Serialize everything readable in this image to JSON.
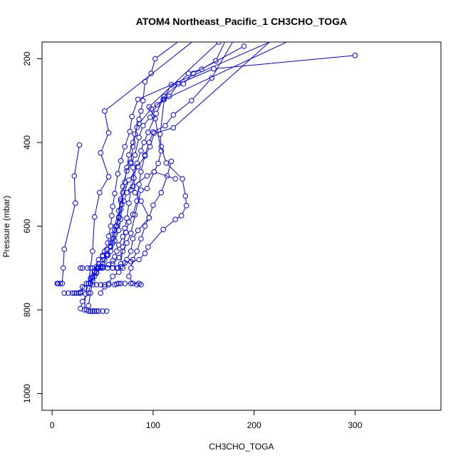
{
  "chart_data": {
    "type": "line",
    "title": "ATOM4 Northeast_Pacific_1 CH3CHO_TOGA",
    "xlabel": "CH3CHO_TOGA",
    "ylabel": "Pressure (mbar)",
    "xlim": [
      -10,
      385
    ],
    "ylim": [
      1040,
      160
    ],
    "y_reversed": true,
    "x_ticks": [
      0,
      100,
      200,
      300
    ],
    "y_ticks": [
      200,
      400,
      600,
      800,
      1000
    ],
    "grid": false,
    "legend": "none",
    "marker": "open-circle",
    "series": [
      {
        "points": [
          [
            27,
            406
          ],
          [
            22,
            480
          ],
          [
            23,
            545
          ],
          [
            12,
            655
          ],
          [
            11,
            700
          ],
          [
            10,
            737
          ],
          [
            8,
            737
          ],
          [
            6,
            737
          ],
          [
            5,
            737
          ]
        ]
      },
      {
        "points": [
          [
            170,
            100
          ],
          [
            52,
            325
          ],
          [
            56,
            377
          ],
          [
            48,
            425
          ],
          [
            56,
            482
          ],
          [
            47,
            520
          ],
          [
            42,
            578
          ],
          [
            40,
            660
          ],
          [
            38,
            700
          ],
          [
            36,
            737
          ],
          [
            33,
            762
          ],
          [
            32,
            800
          ],
          [
            36,
            803
          ],
          [
            40,
            803
          ],
          [
            44,
            803
          ]
        ]
      },
      {
        "points": [
          [
            165,
            160
          ],
          [
            96,
            315
          ],
          [
            102,
            343
          ],
          [
            108,
            420
          ],
          [
            105,
            450
          ],
          [
            101,
            470
          ],
          [
            94,
            510
          ],
          [
            88,
            514
          ],
          [
            82,
            573
          ],
          [
            78,
            617
          ],
          [
            74,
            640
          ],
          [
            70,
            660
          ],
          [
            66,
            675
          ],
          [
            60,
            690
          ],
          [
            55,
            700
          ],
          [
            50,
            700
          ],
          [
            45,
            700
          ],
          [
            40,
            700
          ],
          [
            35,
            700
          ],
          [
            30,
            700
          ],
          [
            28,
            700
          ]
        ]
      },
      {
        "points": [
          [
            225,
            150
          ],
          [
            85,
            297
          ],
          [
            79,
            338
          ],
          [
            77,
            374
          ],
          [
            72,
            410
          ],
          [
            68,
            444
          ],
          [
            65,
            475
          ],
          [
            62,
            522
          ],
          [
            60,
            553
          ],
          [
            59,
            575
          ],
          [
            58,
            600
          ],
          [
            56,
            624
          ],
          [
            55,
            640
          ],
          [
            52,
            660
          ],
          [
            50,
            670
          ],
          [
            46,
            680
          ],
          [
            44,
            697
          ],
          [
            42,
            710
          ],
          [
            40,
            720
          ],
          [
            38,
            737
          ],
          [
            40,
            740
          ],
          [
            44,
            740
          ],
          [
            48,
            740
          ],
          [
            52,
            740
          ],
          [
            56,
            740
          ],
          [
            62,
            740
          ],
          [
            66,
            737
          ]
        ]
      },
      {
        "points": [
          [
            300,
            192
          ],
          [
            160,
            224
          ],
          [
            125,
            260
          ],
          [
            111,
            290
          ],
          [
            103,
            331
          ],
          [
            95,
            376
          ],
          [
            91,
            400
          ],
          [
            88,
            420
          ],
          [
            84,
            450
          ],
          [
            81,
            485
          ],
          [
            78,
            513
          ],
          [
            76,
            545
          ],
          [
            74,
            581
          ],
          [
            72,
            605
          ],
          [
            70,
            625
          ],
          [
            66,
            645
          ],
          [
            64,
            660
          ],
          [
            62,
            673
          ],
          [
            60,
            683
          ],
          [
            56,
            692
          ],
          [
            50,
            697
          ],
          [
            46,
            699
          ]
        ]
      },
      {
        "points": [
          [
            180,
            155
          ],
          [
            158,
            246
          ],
          [
            138,
            300
          ],
          [
            120,
            334
          ],
          [
            112,
            360
          ],
          [
            100,
            375
          ],
          [
            96,
            400
          ],
          [
            92,
            430
          ],
          [
            88,
            470
          ],
          [
            86,
            500
          ],
          [
            84,
            540
          ],
          [
            80,
            572
          ],
          [
            76,
            590
          ],
          [
            73,
            615
          ],
          [
            70,
            650
          ],
          [
            68,
            690
          ],
          [
            65,
            700
          ],
          [
            60,
            700
          ],
          [
            55,
            700
          ],
          [
            50,
            700
          ],
          [
            45,
            700
          ]
        ]
      },
      {
        "points": [
          [
            190,
            170
          ],
          [
            140,
            235
          ],
          [
            130,
            260
          ],
          [
            118,
            262
          ],
          [
            110,
            297
          ],
          [
            104,
            310
          ],
          [
            97,
            340
          ],
          [
            90,
            360
          ],
          [
            86,
            388
          ],
          [
            82,
            430
          ],
          [
            78,
            450
          ],
          [
            74,
            468
          ],
          [
            70,
            505
          ],
          [
            68,
            535
          ],
          [
            66,
            563
          ],
          [
            65,
            590
          ],
          [
            62,
            610
          ],
          [
            60,
            630
          ],
          [
            58,
            648
          ],
          [
            55,
            667
          ],
          [
            52,
            680
          ],
          [
            48,
            697
          ],
          [
            44,
            712
          ],
          [
            40,
            724
          ],
          [
            36,
            737
          ],
          [
            32,
            748
          ],
          [
            28,
            758
          ],
          [
            24,
            760
          ],
          [
            20,
            760
          ],
          [
            16,
            760
          ],
          [
            12,
            760
          ]
        ]
      },
      {
        "points": [
          [
            220,
            150
          ],
          [
            120,
            365
          ],
          [
            101,
            378
          ],
          [
            97,
            410
          ],
          [
            92,
            432
          ],
          [
            85,
            458
          ],
          [
            76,
            490
          ],
          [
            68,
            540
          ],
          [
            66,
            578
          ],
          [
            63,
            600
          ],
          [
            60,
            620
          ],
          [
            58,
            640
          ],
          [
            54,
            656
          ],
          [
            50,
            672
          ],
          [
            46,
            690
          ],
          [
            42,
            707
          ],
          [
            38,
            725
          ],
          [
            34,
            737
          ],
          [
            30,
            745
          ],
          [
            28,
            760
          ],
          [
            26,
            760
          ],
          [
            22,
            760
          ]
        ]
      },
      {
        "points": [
          [
            250,
            140
          ],
          [
            111,
            297
          ],
          [
            107,
            380
          ],
          [
            108,
            410
          ],
          [
            113,
            449
          ],
          [
            129,
            487
          ],
          [
            132,
            528
          ],
          [
            133,
            551
          ],
          [
            128,
            575
          ],
          [
            122,
            584
          ],
          [
            110,
            608
          ],
          [
            95,
            650
          ],
          [
            92,
            665
          ],
          [
            86,
            680
          ],
          [
            78,
            685
          ],
          [
            72,
            688
          ],
          [
            68,
            697
          ],
          [
            64,
            700
          ],
          [
            60,
            700
          ]
        ]
      },
      {
        "points": [
          [
            175,
            140
          ],
          [
            162,
            205
          ],
          [
            148,
            225
          ],
          [
            135,
            235
          ],
          [
            125,
            260
          ],
          [
            116,
            290
          ],
          [
            98,
            320
          ],
          [
            86,
            355
          ],
          [
            84,
            364
          ],
          [
            80,
            410
          ],
          [
            78,
            447
          ],
          [
            80,
            460
          ],
          [
            82,
            520
          ],
          [
            88,
            540
          ],
          [
            96,
            580
          ],
          [
            85,
            610
          ],
          [
            80,
            630
          ],
          [
            78,
            660
          ],
          [
            74,
            680
          ],
          [
            70,
            700
          ],
          [
            66,
            710
          ],
          [
            60,
            720
          ],
          [
            56,
            737
          ],
          [
            52,
            745
          ],
          [
            48,
            760
          ]
        ]
      },
      {
        "points": [
          [
            130,
            150
          ],
          [
            102,
            200
          ],
          [
            98,
            235
          ],
          [
            92,
            255
          ],
          [
            90,
            300
          ],
          [
            88,
            325
          ],
          [
            86,
            345
          ],
          [
            82,
            380
          ],
          [
            80,
            400
          ],
          [
            76,
            430
          ],
          [
            74,
            460
          ],
          [
            72,
            495
          ],
          [
            70,
            520
          ],
          [
            69,
            548
          ],
          [
            68,
            583
          ],
          [
            66,
            610
          ],
          [
            62,
            635
          ],
          [
            58,
            650
          ],
          [
            54,
            670
          ],
          [
            50,
            690
          ],
          [
            46,
            700
          ],
          [
            42,
            710
          ],
          [
            40,
            730
          ],
          [
            38,
            760
          ],
          [
            36,
            790
          ],
          [
            34,
            800
          ],
          [
            38,
            803
          ],
          [
            42,
            803
          ],
          [
            46,
            803
          ],
          [
            50,
            803
          ],
          [
            54,
            803
          ]
        ]
      },
      {
        "points": [
          [
            122,
            487
          ],
          [
            101,
            470
          ],
          [
            94,
            480
          ],
          [
            80,
            505
          ],
          [
            74,
            520
          ],
          [
            71,
            540
          ],
          [
            68,
            560
          ],
          [
            66,
            580
          ],
          [
            64,
            600
          ],
          [
            62,
            620
          ],
          [
            60,
            640
          ],
          [
            58,
            660
          ],
          [
            55,
            670
          ],
          [
            50,
            690
          ],
          [
            48,
            700
          ],
          [
            44,
            710
          ],
          [
            42,
            720
          ],
          [
            38,
            737
          ],
          [
            36,
            760
          ],
          [
            30,
            780
          ],
          [
            28,
            797
          ]
        ]
      },
      {
        "points": [
          [
            118,
            445
          ],
          [
            114,
            480
          ],
          [
            108,
            520
          ],
          [
            100,
            550
          ],
          [
            96,
            580
          ],
          [
            92,
            600
          ],
          [
            88,
            630
          ],
          [
            84,
            660
          ],
          [
            80,
            680
          ],
          [
            78,
            700
          ],
          [
            76,
            720
          ],
          [
            80,
            737
          ],
          [
            84,
            740
          ],
          [
            88,
            740
          ],
          [
            86,
            737
          ],
          [
            78,
            737
          ],
          [
            72,
            737
          ],
          [
            68,
            737
          ],
          [
            64,
            738
          ]
        ]
      }
    ]
  }
}
